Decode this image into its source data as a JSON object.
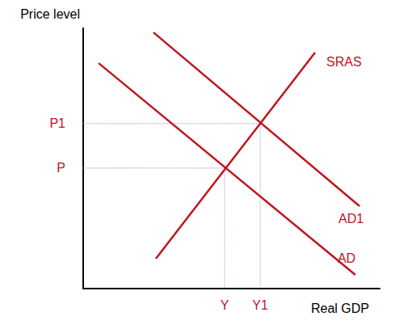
{
  "chart_data": {
    "type": "line",
    "x_label": "Real GDP",
    "y_label": "Price level",
    "color": "#c0141e",
    "xlim": [
      0,
      100
    ],
    "ylim": [
      0,
      100
    ],
    "xticks": [
      {
        "value": 47.7,
        "label": "Y"
      },
      {
        "value": 59.7,
        "label": "Y1"
      }
    ],
    "yticks": [
      {
        "value": 46.3,
        "label": "P"
      },
      {
        "value": 63.4,
        "label": "P1"
      }
    ],
    "grid": false,
    "series": [
      {
        "name": "SRAS",
        "x": [
          24.5,
          78.2
        ],
        "values": [
          11.5,
          90.7
        ]
      },
      {
        "name": "AD1",
        "x": [
          23.7,
          93.2
        ],
        "values": [
          98.4,
          31.7
        ]
      },
      {
        "name": "AD",
        "x": [
          5.2,
          91.8
        ],
        "values": [
          86.6,
          5.3
        ]
      }
    ]
  }
}
